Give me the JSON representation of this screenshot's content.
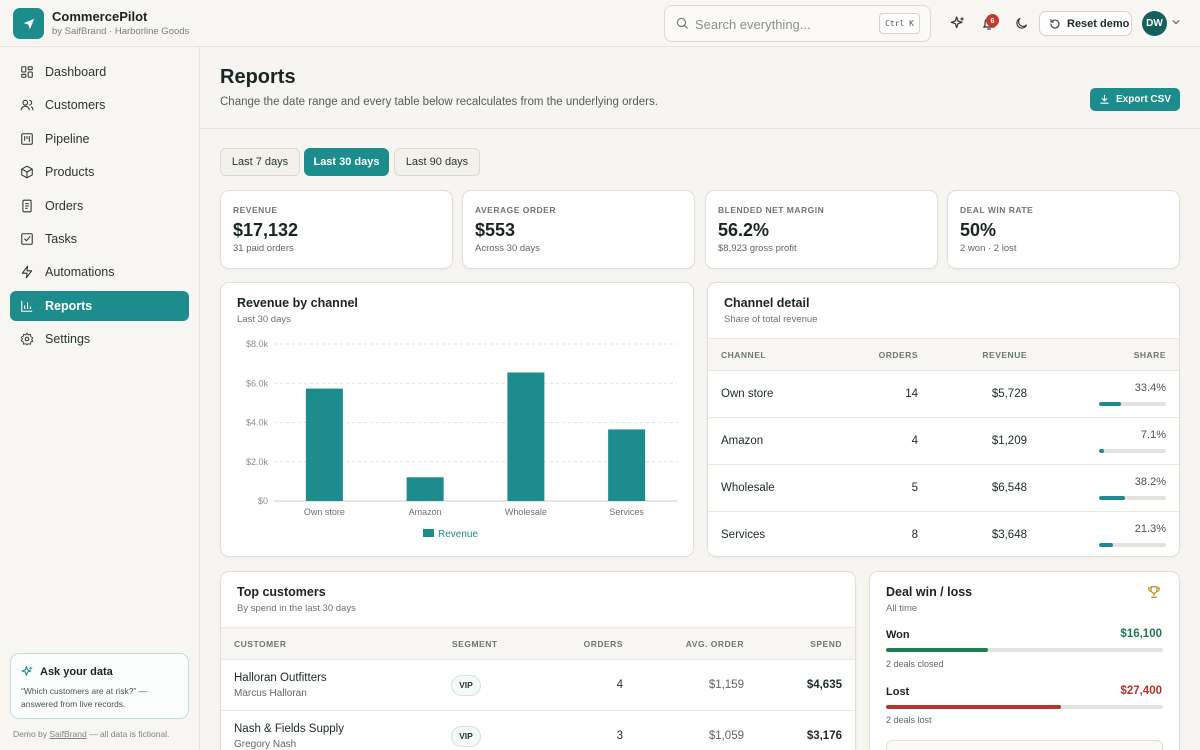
{
  "brand": {
    "name": "CommercePilot",
    "subtitle": "by SaifBrand · Harborline Goods"
  },
  "search": {
    "placeholder": "Search everything...",
    "shortcut": "Ctrl K"
  },
  "toolbar": {
    "notification_count": "6",
    "reset_label": "Reset demo",
    "avatar_initials": "DW"
  },
  "sidebar": {
    "items": [
      {
        "label": "Dashboard",
        "icon": "grid-icon"
      },
      {
        "label": "Customers",
        "icon": "users-icon"
      },
      {
        "label": "Pipeline",
        "icon": "kanban-icon"
      },
      {
        "label": "Products",
        "icon": "box-icon"
      },
      {
        "label": "Orders",
        "icon": "document-icon"
      },
      {
        "label": "Tasks",
        "icon": "checkbox-icon"
      },
      {
        "label": "Automations",
        "icon": "bolt-icon"
      },
      {
        "label": "Reports",
        "icon": "bar-chart-icon",
        "active": true
      },
      {
        "label": "Settings",
        "icon": "gear-icon"
      }
    ],
    "ask": {
      "title": "Ask your data",
      "quote": "“Which customers are at risk?” — answered from live records."
    },
    "demo_note_prefix": "Demo by ",
    "demo_note_brand": "SaifBrand",
    "demo_note_suffix": " — all data is fictional."
  },
  "header": {
    "title": "Reports",
    "subtitle": "Change the date range and every table below recalculates from the underlying orders.",
    "export_label": "Export CSV"
  },
  "ranges": [
    {
      "label": "Last 7 days",
      "active": false
    },
    {
      "label": "Last 30 days",
      "active": true
    },
    {
      "label": "Last 90 days",
      "active": false
    }
  ],
  "kpis": [
    {
      "label": "REVENUE",
      "value": "$17,132",
      "sub": "31 paid orders"
    },
    {
      "label": "AVERAGE ORDER",
      "value": "$553",
      "sub": "Across 30 days"
    },
    {
      "label": "BLENDED NET MARGIN",
      "value": "56.2%",
      "sub": "$8,923 gross profit"
    },
    {
      "label": "DEAL WIN RATE",
      "value": "50%",
      "sub": "2 won · 2 lost"
    }
  ],
  "revenue_chart": {
    "title": "Revenue by channel",
    "subtitle": "Last 30 days",
    "legend": "Revenue"
  },
  "chart_data": {
    "type": "bar",
    "categories": [
      "Own store",
      "Amazon",
      "Wholesale",
      "Services"
    ],
    "series": [
      {
        "name": "Revenue",
        "values": [
          5728,
          1209,
          6548,
          3648
        ]
      }
    ],
    "ylim": [
      0,
      8000
    ],
    "yticks": [
      "$0",
      "$2.0k",
      "$4.0k",
      "$6.0k",
      "$8.0k"
    ],
    "grid": true,
    "legend_position": "bottom",
    "color": "#1c8c8c"
  },
  "channel_detail": {
    "title": "Channel detail",
    "subtitle": "Share of total revenue",
    "columns": [
      "CHANNEL",
      "ORDERS",
      "REVENUE",
      "SHARE"
    ],
    "rows": [
      {
        "channel": "Own store",
        "orders": "14",
        "revenue": "$5,728",
        "share": "33.4%",
        "share_value": 0.334
      },
      {
        "channel": "Amazon",
        "orders": "4",
        "revenue": "$1,209",
        "share": "7.1%",
        "share_value": 0.071
      },
      {
        "channel": "Wholesale",
        "orders": "5",
        "revenue": "$6,548",
        "share": "38.2%",
        "share_value": 0.382
      },
      {
        "channel": "Services",
        "orders": "8",
        "revenue": "$3,648",
        "share": "21.3%",
        "share_value": 0.213
      }
    ]
  },
  "top_customers": {
    "title": "Top customers",
    "subtitle": "By spend in the last 30 days",
    "columns": [
      "CUSTOMER",
      "SEGMENT",
      "ORDERS",
      "AVG. ORDER",
      "SPEND"
    ],
    "rows": [
      {
        "name": "Halloran Outfitters",
        "contact": "Marcus Halloran",
        "segment": "VIP",
        "orders": "4",
        "avg": "$1,159",
        "spend": "$4,635"
      },
      {
        "name": "Nash & Fields Supply",
        "contact": "Gregory Nash",
        "segment": "VIP",
        "orders": "3",
        "avg": "$1,059",
        "spend": "$3,176"
      }
    ]
  },
  "deals": {
    "title": "Deal win / loss",
    "subtitle": "All time",
    "won": {
      "label": "Won",
      "amount": "$16,100",
      "sub": "2 deals closed",
      "fill": 0.37,
      "color": "#1e7a4f"
    },
    "lost": {
      "label": "Lost",
      "amount": "$27,400",
      "sub": "2 deals lost",
      "fill": 0.63,
      "color": "#b8332b"
    }
  }
}
